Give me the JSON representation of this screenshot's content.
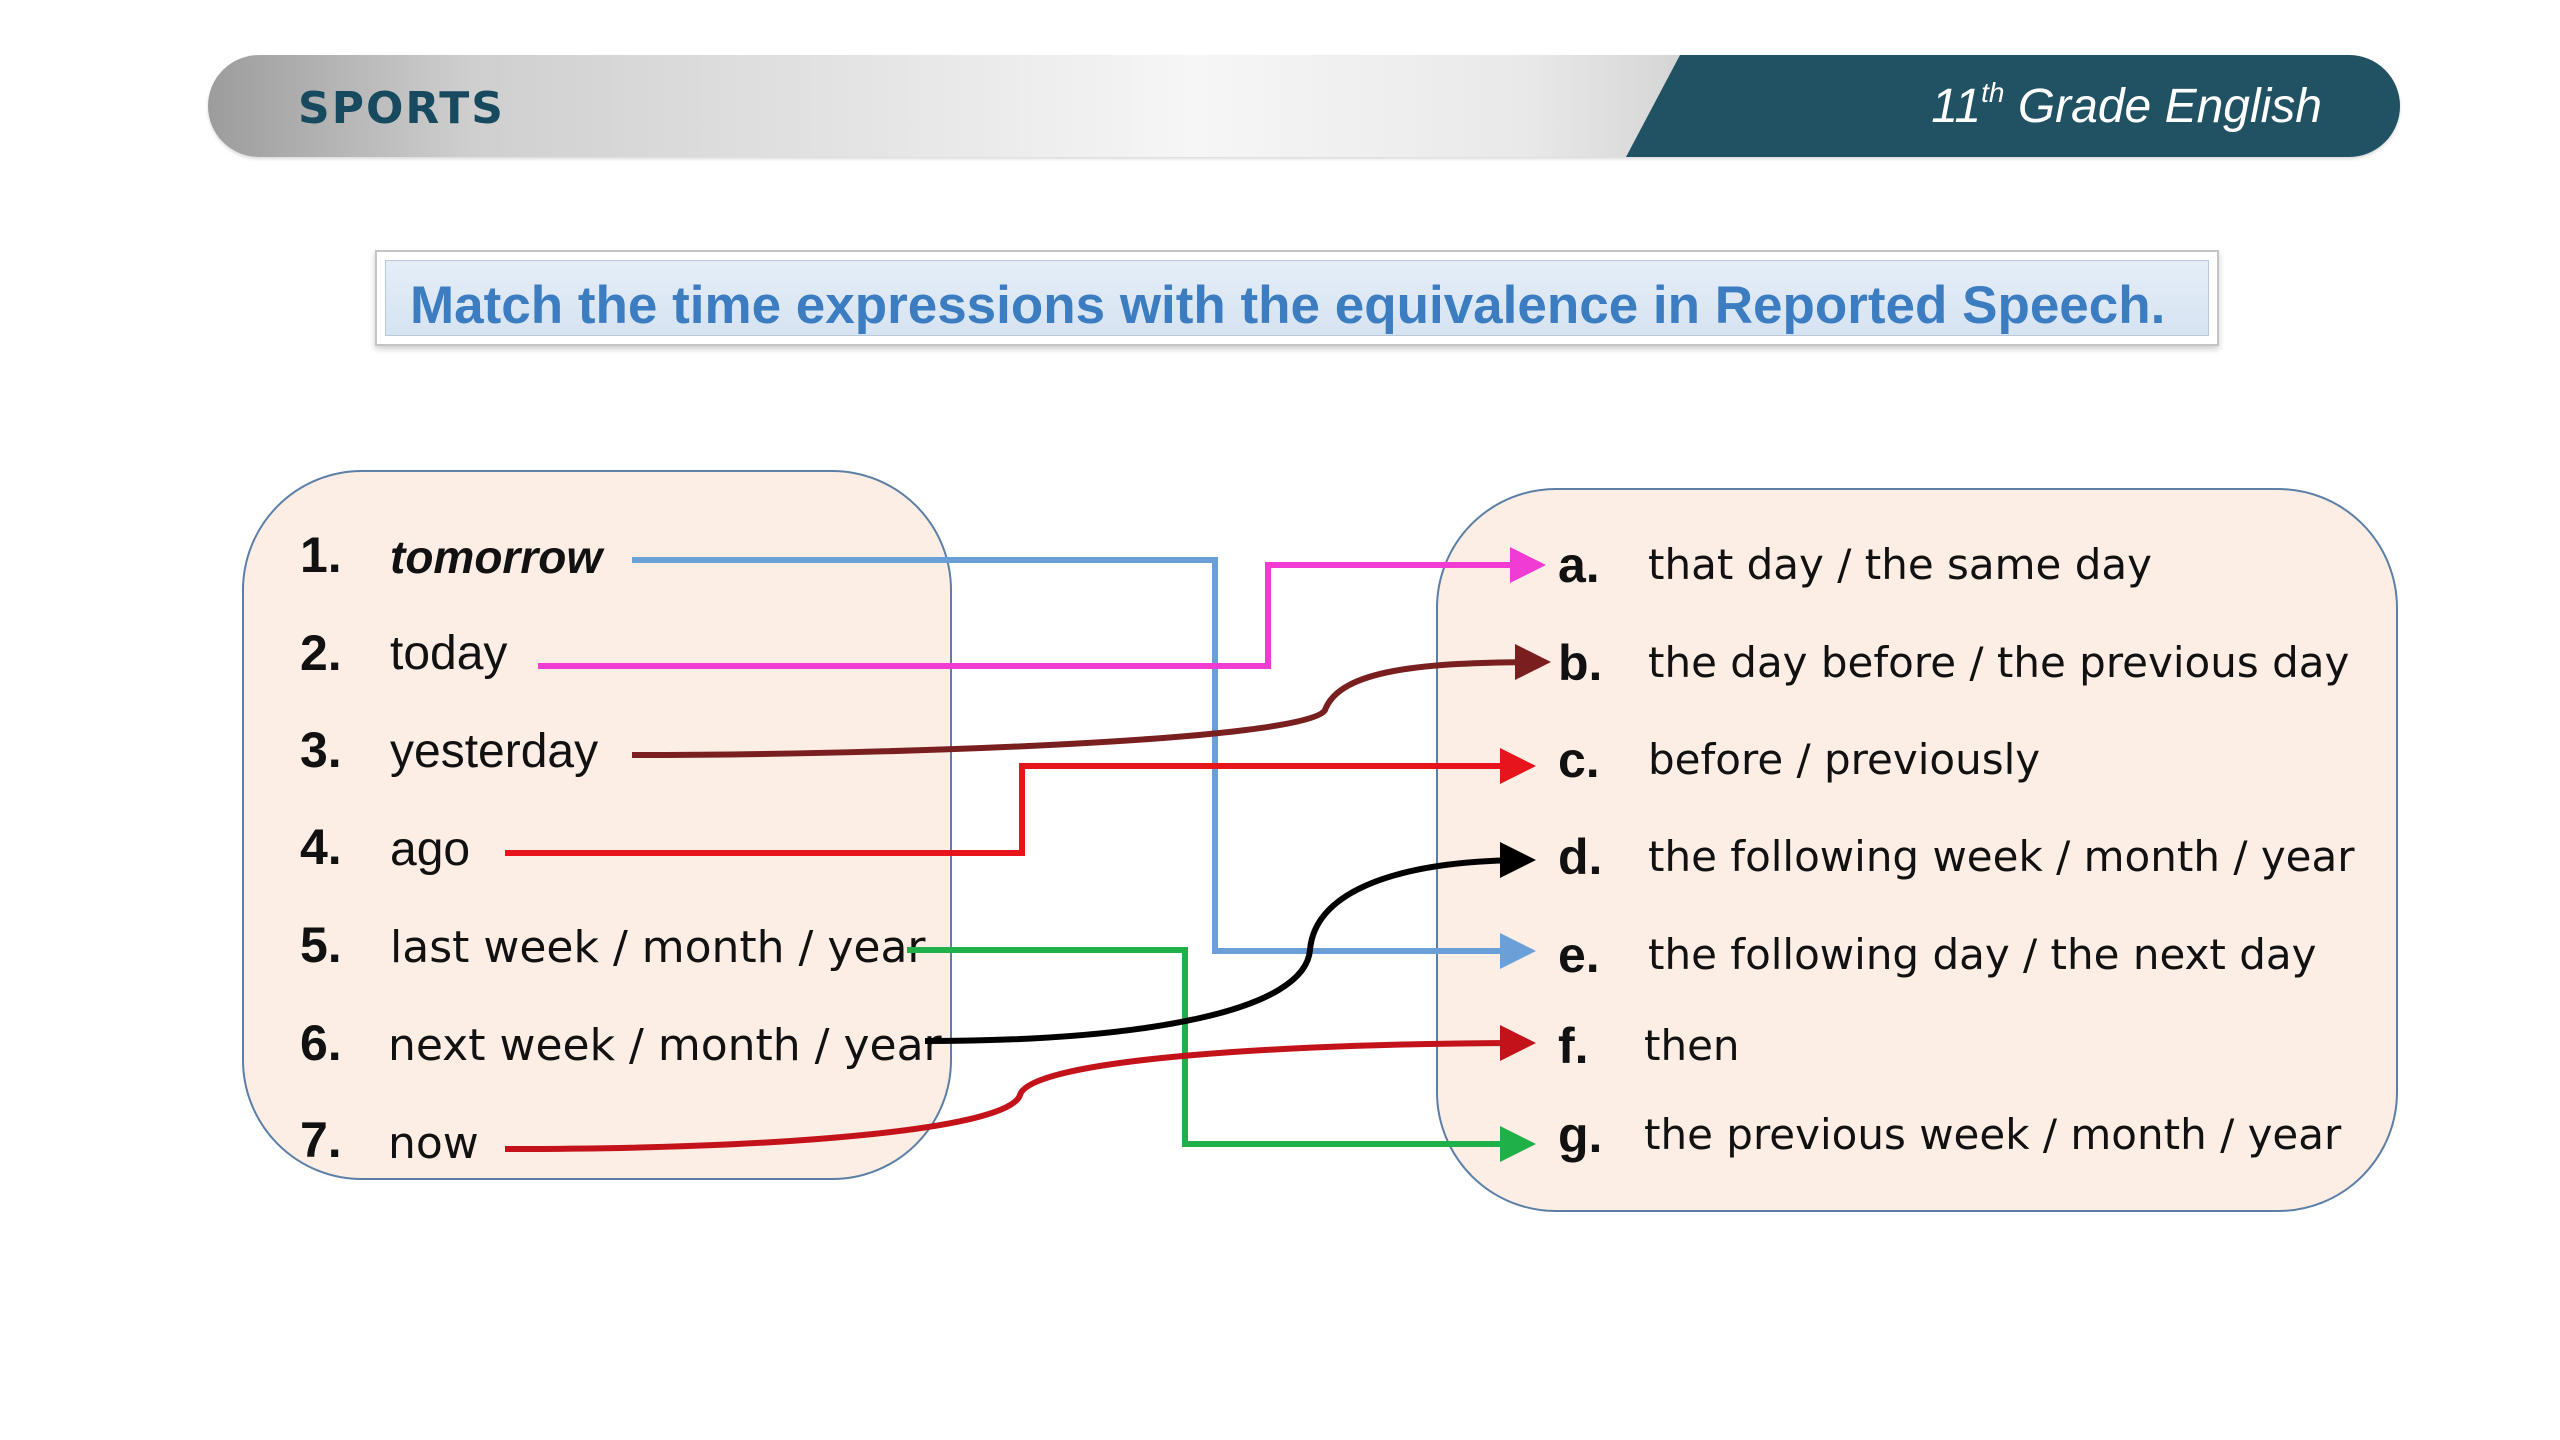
{
  "header": {
    "title": "SPORTS",
    "grade_prefix": "11",
    "grade_sup": "th",
    "grade_suffix": " Grade English"
  },
  "instruction": "Match the time expressions with the equivalence in Reported Speech.",
  "left_items": [
    {
      "number": "1.",
      "text": "tomorrow"
    },
    {
      "number": "2.",
      "text": "today"
    },
    {
      "number": "3.",
      "text": "yesterday"
    },
    {
      "number": "4.",
      "text": "ago"
    },
    {
      "number": "5.",
      "text": "last week / month / year"
    },
    {
      "number": "6.",
      "text": "next week / month / year"
    },
    {
      "number": "7.",
      "text": "now"
    }
  ],
  "right_items": [
    {
      "letter": "a.",
      "text": "that day / the same day"
    },
    {
      "letter": "b.",
      "text": "the day before / the previous day"
    },
    {
      "letter": "c.",
      "text": "before / previously"
    },
    {
      "letter": "d.",
      "text": "the following week / month / year"
    },
    {
      "letter": "e.",
      "text": "the following day / the next day"
    },
    {
      "letter": "f.",
      "text": "then"
    },
    {
      "letter": "g.",
      "text": "the previous week / month / year"
    }
  ],
  "matches": [
    {
      "from": "1.",
      "to": "e.",
      "color": "#6a9fd8"
    },
    {
      "from": "2.",
      "to": "a.",
      "color": "#f03cd2"
    },
    {
      "from": "3.",
      "to": "b.",
      "color": "#7a1f1f"
    },
    {
      "from": "4.",
      "to": "c.",
      "color": "#e8141c"
    },
    {
      "from": "5.",
      "to": "g.",
      "color": "#1fb04a"
    },
    {
      "from": "6.",
      "to": "d.",
      "color": "#000000"
    },
    {
      "from": "7.",
      "to": "f.",
      "color": "#c4121a"
    }
  ]
}
